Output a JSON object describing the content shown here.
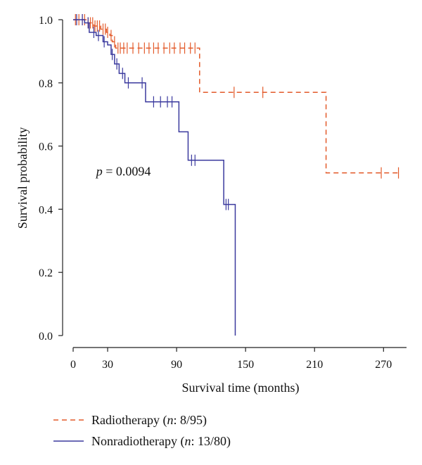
{
  "chart_data": {
    "type": "line",
    "xlabel": "Survival time (months)",
    "ylabel": "Survival probability",
    "xlim": [
      0,
      290
    ],
    "ylim": [
      0,
      1
    ],
    "xticks": [
      0,
      30,
      90,
      150,
      210,
      270
    ],
    "yticks": [
      0.0,
      0.2,
      0.4,
      0.6,
      0.8,
      1.0
    ],
    "annotation": {
      "italic": "p",
      "text": " = 0.0094",
      "x": 20,
      "y": 0.52
    },
    "legend_placement": "bottom-left",
    "series": [
      {
        "name": "Radiotherapy",
        "legend_n": "8/95",
        "style": "dashed",
        "color": "#e35a2a",
        "steps": [
          [
            0,
            1.0
          ],
          [
            12,
            0.99
          ],
          [
            18,
            0.98
          ],
          [
            24,
            0.97
          ],
          [
            29,
            0.96
          ],
          [
            32,
            0.95
          ],
          [
            34,
            0.93
          ],
          [
            37,
            0.91
          ],
          [
            110,
            0.77
          ],
          [
            220,
            0.515
          ],
          [
            283,
            0.515
          ]
        ],
        "censor_times": [
          2,
          5,
          8,
          10,
          13,
          15,
          17,
          19,
          21,
          23,
          26,
          28,
          30,
          33,
          36,
          39,
          41,
          44,
          47,
          52,
          57,
          62,
          66,
          70,
          74,
          79,
          84,
          88,
          93,
          97,
          102,
          106,
          140,
          165,
          268,
          283
        ]
      },
      {
        "name": "Nonradiotherapy",
        "legend_n": "13/80",
        "style": "solid",
        "color": "#3b3a9e",
        "steps": [
          [
            0,
            1.0
          ],
          [
            10,
            0.99
          ],
          [
            14,
            0.96
          ],
          [
            20,
            0.95
          ],
          [
            26,
            0.93
          ],
          [
            30,
            0.92
          ],
          [
            33,
            0.89
          ],
          [
            36,
            0.86
          ],
          [
            40,
            0.83
          ],
          [
            45,
            0.8
          ],
          [
            63,
            0.74
          ],
          [
            92,
            0.645
          ],
          [
            100,
            0.555
          ],
          [
            131,
            0.415
          ],
          [
            141,
            0.0
          ]
        ],
        "censor_times": [
          3,
          8,
          13,
          18,
          22,
          27,
          34,
          38,
          43,
          48,
          60,
          70,
          76,
          82,
          86,
          103,
          106,
          133,
          135
        ]
      }
    ]
  }
}
